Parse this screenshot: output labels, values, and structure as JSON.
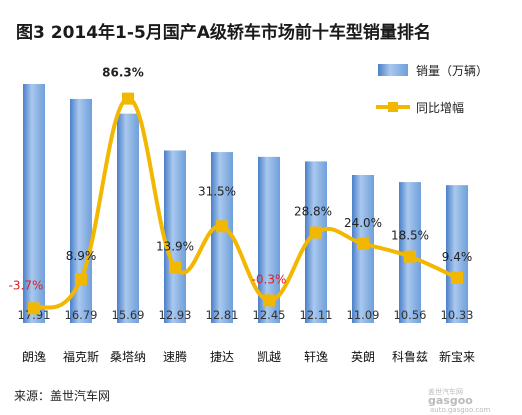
{
  "chart_data": {
    "type": "bar",
    "title": "图3  2014年1-5月国产A级轿车市场前十车型销量排名",
    "categories": [
      "朗逸",
      "福克斯",
      "桑塔纳",
      "速腾",
      "捷达",
      "凯越",
      "轩逸",
      "英朗",
      "科鲁兹",
      "新宝来"
    ],
    "series": [
      {
        "name": "销量（万辆）",
        "type": "bar",
        "values": [
          17.91,
          16.79,
          15.69,
          12.93,
          12.81,
          12.45,
          12.11,
          11.09,
          10.56,
          10.33
        ],
        "value_labels": [
          "17.91",
          "16.79",
          "15.69",
          "12.93",
          "12.81",
          "12.45",
          "12.11",
          "11.09",
          "10.56",
          "10.33"
        ]
      },
      {
        "name": "同比增幅",
        "type": "line",
        "values": [
          -3.7,
          8.9,
          86.3,
          13.9,
          31.5,
          -0.3,
          28.8,
          24.0,
          18.5,
          9.4
        ],
        "value_labels": [
          "-3.7%",
          "8.9%",
          "86.3%",
          "13.9%",
          "31.5%",
          "-0.3%",
          "28.8%",
          "24.0%",
          "18.5%",
          "9.4%"
        ]
      }
    ],
    "ylim_bar": [
      0,
      20
    ],
    "ylim_line": [
      -10,
      90
    ],
    "legend_position": "top-right",
    "grid": false,
    "colors": {
      "bar_light": "#a9c8ee",
      "bar_mid": "#6f9fda",
      "bar_dark": "#4a7fc8",
      "line": "#f2b700",
      "marker": "#f2b700",
      "negative_text": "#e02020"
    }
  },
  "source": "来源：盖世汽车网",
  "watermark": {
    "brand": "gasgoo",
    "cn": "盖世汽车网",
    "url": "auto.gasgoo.com"
  }
}
